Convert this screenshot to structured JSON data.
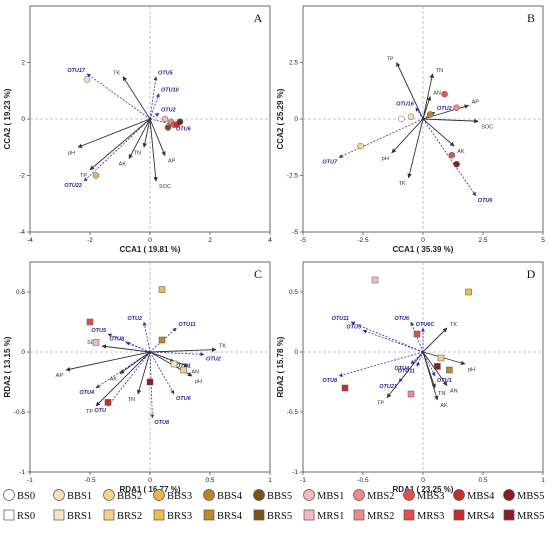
{
  "chart_data": [
    {
      "panel": "A",
      "type": "scatter",
      "xlabel": "CCA1 ( 19.81 %)",
      "ylabel": "CCA2 ( 19.23 %)",
      "xlim": [
        -4,
        4
      ],
      "ylim": [
        -4,
        4
      ],
      "xticks": [
        -4,
        -2,
        0,
        2,
        4
      ],
      "yticks": [
        -4,
        -2,
        0,
        2
      ],
      "env_vectors": [
        {
          "label": "TK",
          "x": -0.9,
          "y": 1.5
        },
        {
          "label": "pH",
          "x": -2.4,
          "y": -1.0
        },
        {
          "label": "TP",
          "x": -2.0,
          "y": -1.8
        },
        {
          "label": "AK",
          "x": -0.7,
          "y": -1.4
        },
        {
          "label": "TN",
          "x": -0.2,
          "y": -1.0
        },
        {
          "label": "AP",
          "x": 0.5,
          "y": -1.3
        },
        {
          "label": "SOC",
          "x": 0.2,
          "y": -2.2
        }
      ],
      "otu_vectors": [
        {
          "label": "OTU17",
          "x": -2.1,
          "y": 1.6
        },
        {
          "label": "OTU5",
          "x": 0.2,
          "y": 1.5
        },
        {
          "label": "OTU10",
          "x": 0.3,
          "y": 0.9
        },
        {
          "label": "OTU22",
          "x": -2.2,
          "y": -2.2
        },
        {
          "label": "OTU2",
          "x": 0.3,
          "y": 0.2
        },
        {
          "label": "OTU6",
          "x": 0.8,
          "y": -0.2
        }
      ],
      "samples": [
        {
          "group": "BBS1",
          "x": -2.1,
          "y": 1.4
        },
        {
          "group": "BBS3",
          "x": -1.8,
          "y": -2.0
        },
        {
          "group": "MBS1",
          "x": 0.5,
          "y": 0.0
        },
        {
          "group": "MBS2",
          "x": 0.7,
          "y": -0.1
        },
        {
          "group": "MBS3",
          "x": 0.8,
          "y": -0.2
        },
        {
          "group": "MBS4",
          "x": 0.9,
          "y": -0.2
        },
        {
          "group": "MBS5",
          "x": 1.0,
          "y": -0.1
        },
        {
          "group": "BBS5",
          "x": 0.6,
          "y": -0.3
        }
      ]
    },
    {
      "panel": "B",
      "type": "scatter",
      "xlabel": "CCA1 ( 35.39 %)",
      "ylabel": "CCA2 ( 25.29 %)",
      "xlim": [
        -5,
        5
      ],
      "ylim": [
        -5,
        5
      ],
      "xticks": [
        -5.0,
        -2.5,
        0.0,
        2.5,
        5.0
      ],
      "yticks": [
        -5.0,
        -2.5,
        0.0,
        2.5
      ],
      "env_vectors": [
        {
          "label": "TP",
          "x": -1.1,
          "y": 2.5
        },
        {
          "label": "TN",
          "x": 0.4,
          "y": 2.0
        },
        {
          "label": "AN",
          "x": 0.3,
          "y": 1.0
        },
        {
          "label": "AP",
          "x": 1.9,
          "y": 0.6
        },
        {
          "label": "SOC",
          "x": 2.3,
          "y": -0.1
        },
        {
          "label": "AK",
          "x": 1.3,
          "y": -1.2
        },
        {
          "label": "pH",
          "x": -1.3,
          "y": -1.5
        },
        {
          "label": "TK",
          "x": -0.6,
          "y": -2.6
        }
      ],
      "otu_vectors": [
        {
          "label": "OTU16",
          "x": -0.3,
          "y": 0.5
        },
        {
          "label": "OTU2",
          "x": 0.5,
          "y": 0.3
        },
        {
          "label": "OTU7",
          "x": -3.5,
          "y": -1.7
        },
        {
          "label": "OTU6",
          "x": 2.2,
          "y": -3.4
        }
      ],
      "samples": [
        {
          "group": "BBS1",
          "x": -0.5,
          "y": 0.1
        },
        {
          "group": "BBS2",
          "x": -2.6,
          "y": -1.2
        },
        {
          "group": "MBS3",
          "x": 0.9,
          "y": 1.1
        },
        {
          "group": "MBS2",
          "x": 1.4,
          "y": 0.5
        },
        {
          "group": "MBS3",
          "x": 1.2,
          "y": -1.6
        },
        {
          "group": "MBS5",
          "x": 1.4,
          "y": -2.0
        },
        {
          "group": "BS0",
          "x": -0.9,
          "y": 0.0
        },
        {
          "group": "BBS4",
          "x": 0.3,
          "y": 0.2
        }
      ]
    },
    {
      "panel": "C",
      "type": "scatter",
      "xlabel": "RDA1 ( 16.77 %)",
      "ylabel": "RDA2 ( 13.15 %)",
      "xlim": [
        -1.0,
        1.0
      ],
      "ylim": [
        -1.0,
        0.75
      ],
      "xticks": [
        -1.0,
        -0.5,
        0.0,
        0.5,
        1.0
      ],
      "yticks": [
        -1.0,
        -0.5,
        0.0,
        0.5
      ],
      "env_vectors": [
        {
          "label": "SOC",
          "x": -0.4,
          "y": 0.05
        },
        {
          "label": "AP",
          "x": -0.7,
          "y": -0.15
        },
        {
          "label": "AK",
          "x": -0.25,
          "y": -0.18
        },
        {
          "label": "TN",
          "x": -0.1,
          "y": -0.35
        },
        {
          "label": "TP",
          "x": -0.45,
          "y": -0.45
        },
        {
          "label": "TK",
          "x": 0.55,
          "y": 0.02
        },
        {
          "label": "AN",
          "x": 0.32,
          "y": -0.12
        },
        {
          "label": "pH",
          "x": 0.35,
          "y": -0.2
        }
      ],
      "otu_vectors": [
        {
          "label": "OTU2",
          "x": -0.05,
          "y": 0.25
        },
        {
          "label": "OTU5",
          "x": -0.35,
          "y": 0.15
        },
        {
          "label": "OTU8",
          "x": -0.2,
          "y": 0.08
        },
        {
          "label": "OTU11",
          "x": 0.22,
          "y": 0.2
        },
        {
          "label": "OTU2",
          "x": 0.45,
          "y": -0.02
        },
        {
          "label": "OTU1",
          "x": 0.2,
          "y": -0.08
        },
        {
          "label": "OTU4",
          "x": -0.45,
          "y": -0.3
        },
        {
          "label": "OTU",
          "x": -0.35,
          "y": -0.45
        },
        {
          "label": "OTU6",
          "x": 0.2,
          "y": -0.35
        },
        {
          "label": "OTU8",
          "x": 0.02,
          "y": -0.55
        }
      ],
      "samples": [
        {
          "group": "BRS3",
          "x": 0.1,
          "y": 0.52
        },
        {
          "group": "BRS4",
          "x": 0.1,
          "y": 0.1
        },
        {
          "group": "MRS3",
          "x": -0.5,
          "y": 0.25
        },
        {
          "group": "MRS1",
          "x": -0.45,
          "y": 0.08
        },
        {
          "group": "MRS5",
          "x": 0.0,
          "y": -0.25
        },
        {
          "group": "MRS4",
          "x": -0.35,
          "y": -0.42
        },
        {
          "group": "BRS1",
          "x": 0.2,
          "y": -0.1
        },
        {
          "group": "BRS2",
          "x": 0.28,
          "y": -0.15
        }
      ]
    },
    {
      "panel": "D",
      "type": "scatter",
      "xlabel": "RDA1 ( 23.25 %)",
      "ylabel": "RDA2 ( 15.78 %)",
      "xlim": [
        -1.0,
        1.0
      ],
      "ylim": [
        -1.0,
        0.75
      ],
      "xticks": [
        -1.0,
        -0.5,
        0.0,
        0.5,
        1.0
      ],
      "yticks": [
        -1.0,
        -0.5,
        0.0,
        0.5
      ],
      "env_vectors": [
        {
          "label": "TK",
          "x": 0.2,
          "y": 0.2
        },
        {
          "label": "pH",
          "x": 0.35,
          "y": -0.1
        },
        {
          "label": "AN",
          "x": 0.2,
          "y": -0.28
        },
        {
          "label": "AK",
          "x": 0.12,
          "y": -0.4
        },
        {
          "label": "TP",
          "x": -0.3,
          "y": -0.38
        },
        {
          "label": "TN",
          "x": 0.1,
          "y": -0.3
        }
      ],
      "otu_vectors": [
        {
          "label": "OTU11",
          "x": -0.6,
          "y": 0.25
        },
        {
          "label": "OTU5",
          "x": -0.5,
          "y": 0.18
        },
        {
          "label": "OTU6",
          "x": -0.1,
          "y": 0.25
        },
        {
          "label": "OTU6C",
          "x": 0.0,
          "y": 0.2
        },
        {
          "label": "OTU8",
          "x": -0.7,
          "y": -0.2
        },
        {
          "label": "OTU21",
          "x": -0.2,
          "y": -0.25
        },
        {
          "label": "OTU4",
          "x": -0.1,
          "y": -0.1
        },
        {
          "label": "OTU11",
          "x": -0.05,
          "y": -0.12
        },
        {
          "label": "OTU1",
          "x": 0.1,
          "y": -0.2
        }
      ],
      "samples": [
        {
          "group": "MRS1",
          "x": -0.4,
          "y": 0.6
        },
        {
          "group": "BRS3",
          "x": 0.38,
          "y": 0.5
        },
        {
          "group": "MRS3",
          "x": -0.05,
          "y": 0.15
        },
        {
          "group": "MRS4",
          "x": -0.65,
          "y": -0.3
        },
        {
          "group": "BRS2",
          "x": 0.15,
          "y": -0.05
        },
        {
          "group": "BRS4",
          "x": 0.22,
          "y": -0.15
        },
        {
          "group": "MRS5",
          "x": 0.12,
          "y": -0.12
        },
        {
          "group": "MRS2",
          "x": -0.1,
          "y": -0.35
        }
      ]
    }
  ],
  "panels": [
    {
      "letter": "A"
    },
    {
      "letter": "B"
    },
    {
      "letter": "C"
    },
    {
      "letter": "D"
    }
  ],
  "legend": {
    "rows": [
      [
        {
          "label": "BS0",
          "shape": "circle",
          "color": "#ffffff"
        },
        {
          "label": "BBS1",
          "shape": "circle",
          "color": "#f3e1bb"
        },
        {
          "label": "BBS2",
          "shape": "circle",
          "color": "#f4d58a"
        },
        {
          "label": "BBS3",
          "shape": "circle",
          "color": "#e9b64a"
        },
        {
          "label": "BBS4",
          "shape": "circle",
          "color": "#b7862a"
        },
        {
          "label": "BBS5",
          "shape": "circle",
          "color": "#7a5317"
        },
        {
          "label": "MBS1",
          "shape": "circle",
          "color": "#f4b7bf"
        },
        {
          "label": "MBS2",
          "shape": "circle",
          "color": "#ec8a8e"
        },
        {
          "label": "MBS3",
          "shape": "circle",
          "color": "#e15252"
        },
        {
          "label": "MBS4",
          "shape": "circle",
          "color": "#c42f2f"
        },
        {
          "label": "MBS5",
          "shape": "circle",
          "color": "#8a1e26"
        }
      ],
      [
        {
          "label": "RS0",
          "shape": "square",
          "color": "#ffffff"
        },
        {
          "label": "BRS1",
          "shape": "square",
          "color": "#f7e6c3"
        },
        {
          "label": "BRS2",
          "shape": "square",
          "color": "#f4cf85"
        },
        {
          "label": "BRS3",
          "shape": "square",
          "color": "#ecbd52"
        },
        {
          "label": "BRS4",
          "shape": "square",
          "color": "#b98a2c"
        },
        {
          "label": "BRS5",
          "shape": "square",
          "color": "#7a5317"
        },
        {
          "label": "MRS1",
          "shape": "square",
          "color": "#f5b7c4"
        },
        {
          "label": "MRS2",
          "shape": "square",
          "color": "#ef8889"
        },
        {
          "label": "MRS3",
          "shape": "square",
          "color": "#e04e4e"
        },
        {
          "label": "MRS4",
          "shape": "square",
          "color": "#c22e2e"
        },
        {
          "label": "MRS5",
          "shape": "square",
          "color": "#8a1e2a"
        }
      ]
    ]
  },
  "colors": {
    "env_arrow": "#333333",
    "otu_arrow": "#3a2aa8",
    "dashed_zero": "#b5b5b5",
    "point_stroke": "#555555"
  }
}
